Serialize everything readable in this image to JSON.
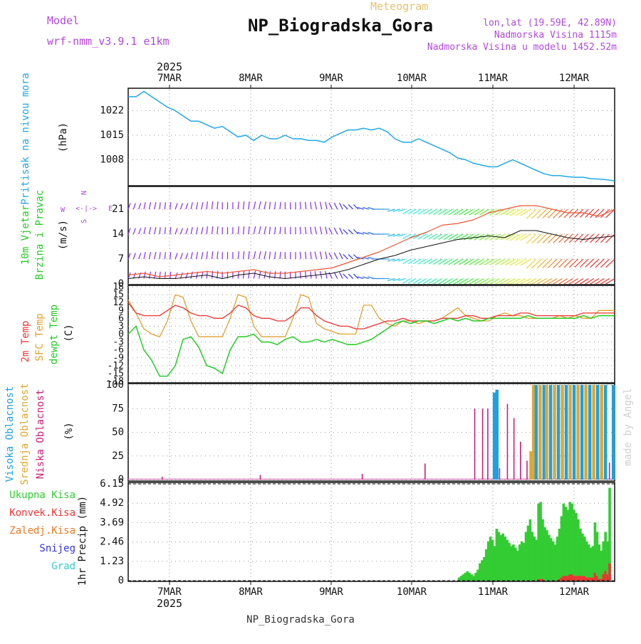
{
  "header": {
    "model_label": "Model",
    "model_name": "wrf-nmm_v3.9.1 e1km",
    "meteogram_label": "Meteogram",
    "station_title": "NP_Biogradska_Gora",
    "coords": "lon,lat (19.59E, 42.89N)",
    "elevation": "Nadmorska Visina 1115m",
    "model_elevation": "Nadmorska Visina u modelu 1452.52m",
    "year_top": "2025",
    "year_bottom": "2025",
    "footer_station": "NP_Biogradska_Gora",
    "credit": "made by Angel"
  },
  "colors": {
    "pressure": "#1fa8e8",
    "temp2m": "#ee3333",
    "sfc_temp": "#e0a030",
    "dewpt": "#22cc22",
    "high_cloud": "#1fa0e0",
    "mid_cloud": "#e0a830",
    "low_cloud": "#cc1f77",
    "total_precip": "#33cc33",
    "conv_precip": "#ee3333",
    "frozen": "#ee7722",
    "snow": "#3333dd",
    "hail": "#33cccc",
    "purple_text": "#b347e0",
    "meteogram_text": "#e8c070"
  },
  "chart_data": [
    {
      "type": "line",
      "id": "pressure",
      "ylabel_1": "Pritisak na nivou mora",
      "ylabel_2": "(hPa)",
      "x_categories": [
        "7MAR",
        "8MAR",
        "9MAR",
        "10MAR",
        "11MAR",
        "12MAR"
      ],
      "yticks": [
        "1022",
        "1015",
        "1008"
      ],
      "ylim": [
        1001,
        1028
      ],
      "x_hours": [
        0,
        6,
        12,
        18,
        24,
        30,
        36,
        42,
        48,
        54,
        60,
        66,
        72,
        78,
        84,
        90,
        96,
        102,
        108,
        114,
        120,
        126,
        132,
        138,
        144,
        150,
        156,
        162,
        168,
        174,
        180,
        186,
        192,
        198,
        204,
        210,
        216,
        222,
        228,
        234,
        240,
        246,
        252,
        258,
        264,
        270,
        276,
        282,
        288,
        294,
        300,
        306,
        312,
        318,
        324,
        330,
        336,
        342,
        348,
        354,
        360,
        366,
        372
      ],
      "values": [
        1026,
        1026,
        1027.5,
        1026,
        1024.5,
        1023,
        1022,
        1020.5,
        1019,
        1019,
        1018,
        1017,
        1017.5,
        1016,
        1014.5,
        1015,
        1013.5,
        1015,
        1014,
        1014,
        1015,
        1014,
        1014,
        1013.5,
        1013.5,
        1013,
        1014.5,
        1015.5,
        1016.5,
        1016.5,
        1017,
        1016.5,
        1017,
        1016,
        1014,
        1013,
        1013,
        1014,
        1013,
        1012,
        1011,
        1010,
        1008.5,
        1008,
        1007,
        1006.5,
        1006,
        1006,
        1007,
        1008,
        1007,
        1006,
        1005,
        1004,
        1003.5,
        1003.5,
        1003.2,
        1003,
        1003,
        1002.6,
        1002.5,
        1002.3,
        1002
      ]
    },
    {
      "type": "line",
      "id": "wind",
      "ylabel_1": "10m Vjetar",
      "ylabel_2": "Brzina i Pravac",
      "unit": "(m/s)",
      "compass_rose": [
        "N",
        "S",
        "E",
        "W",
        "<-|->"
      ],
      "yticks": [
        "21",
        "14",
        "7",
        "0"
      ],
      "ylim": [
        0,
        27
      ],
      "x_hours": [
        0,
        12,
        24,
        36,
        48,
        60,
        72,
        84,
        96,
        108,
        120,
        132,
        144,
        156,
        168,
        180,
        192,
        204,
        216,
        228,
        240,
        252,
        264,
        276,
        288,
        300,
        312,
        324,
        336,
        348,
        360,
        372
      ],
      "speed": [
        1.5,
        2,
        1.5,
        1.5,
        2,
        2.5,
        1.5,
        2.5,
        3,
        2,
        1.5,
        2,
        2.5,
        3,
        4,
        5.5,
        7,
        8,
        9.5,
        10.5,
        11.5,
        12.5,
        13,
        13.5,
        13,
        15,
        15,
        14,
        13,
        12.5,
        13,
        13.5
      ],
      "gust": [
        2.5,
        3,
        2,
        2.5,
        3,
        3.5,
        3,
        3.5,
        4,
        3,
        3,
        3.5,
        4,
        4.5,
        6,
        7.5,
        9,
        11,
        13,
        14.5,
        16.5,
        17,
        18,
        20,
        21,
        22,
        22,
        21,
        20,
        20,
        19,
        21
      ],
      "direction_deg": [
        60,
        70,
        80,
        60,
        70,
        80,
        90,
        80,
        70,
        80,
        90,
        100,
        110,
        130,
        150,
        170,
        180,
        190,
        200,
        200,
        200,
        200,
        200,
        200,
        200,
        200,
        210,
        210,
        210,
        210,
        210,
        210
      ]
    },
    {
      "type": "line",
      "id": "temperature",
      "legend": [
        "2m Temp",
        "SFC Temp",
        "dewpt Temp"
      ],
      "unit": "(C)",
      "yticks": [
        "18",
        "15",
        "12",
        "9",
        "6",
        "3",
        "0",
        "-3",
        "-6",
        "-9",
        "-12",
        "-15",
        "-18"
      ],
      "ylim": [
        -18,
        18
      ],
      "x_hours": [
        0,
        6,
        12,
        18,
        24,
        30,
        36,
        42,
        48,
        54,
        60,
        66,
        72,
        78,
        84,
        90,
        96,
        102,
        108,
        114,
        120,
        126,
        132,
        138,
        144,
        150,
        156,
        162,
        168,
        174,
        180,
        186,
        192,
        198,
        204,
        210,
        216,
        222,
        228,
        234,
        240,
        246,
        252,
        258,
        264,
        270,
        276,
        282,
        288,
        294,
        300,
        306,
        312,
        318,
        324,
        330,
        336,
        342,
        348,
        354,
        360,
        366,
        372
      ],
      "temp2m": [
        12,
        8,
        7,
        7,
        7,
        9,
        11,
        10,
        8,
        7,
        7,
        6,
        6,
        8,
        11,
        10,
        7,
        6,
        6,
        5,
        5,
        7,
        10,
        10,
        7,
        5,
        4,
        3,
        3,
        2,
        2,
        3,
        4,
        5,
        5,
        6,
        5,
        5,
        5,
        5,
        6,
        6,
        6,
        7,
        7,
        6,
        6,
        7,
        7,
        7,
        8,
        8,
        7,
        7,
        7,
        7,
        7,
        7,
        8,
        8,
        8,
        8,
        8
      ],
      "sfc": [
        13,
        8,
        2,
        0,
        -1,
        5,
        15,
        14,
        5,
        -1,
        -1,
        -1,
        -1,
        6,
        15,
        14,
        3,
        -1,
        -1,
        -1,
        -1,
        6,
        15,
        14,
        4,
        2,
        1,
        0,
        0,
        0,
        11,
        11,
        6,
        4,
        3,
        5,
        5,
        4,
        5,
        5,
        6,
        8,
        10,
        7,
        6,
        5,
        5,
        7,
        8,
        7,
        7,
        6,
        6,
        6,
        6,
        7,
        6,
        7,
        6,
        6,
        9,
        9,
        9
      ],
      "dewpt": [
        0,
        3,
        -6,
        -10,
        -16,
        -16,
        -12,
        -2,
        -1,
        -5,
        -12,
        -13,
        -15,
        -6,
        -1,
        -1,
        0,
        -3,
        -3,
        -4,
        -2,
        -1,
        -3,
        -3,
        -2,
        -3,
        -2,
        -3,
        -4,
        -4,
        -3,
        -2,
        0,
        2,
        4,
        5,
        4,
        5,
        5,
        4,
        5,
        6,
        5,
        6,
        5,
        5,
        6,
        6,
        6,
        6,
        6,
        7,
        6,
        6,
        6,
        6,
        6,
        6,
        7,
        6,
        7,
        7,
        7
      ]
    },
    {
      "type": "bar",
      "id": "clouds",
      "legend": [
        "Visoka Oblacnost",
        "Srednja Oblacnost",
        "Niska Oblacnost"
      ],
      "unit": "(%)",
      "yticks": [
        "100",
        "75",
        "50",
        "25",
        "0"
      ],
      "ylim": [
        0,
        100
      ],
      "bars": [
        {
          "h": 26,
          "layer": "low",
          "v": 3
        },
        {
          "h": 101,
          "layer": "low",
          "v": 5
        },
        {
          "h": 179,
          "layer": "low",
          "v": 6
        },
        {
          "h": 227,
          "layer": "low",
          "v": 17
        },
        {
          "h": 265,
          "layer": "low",
          "v": 75
        },
        {
          "h": 271,
          "layer": "low",
          "v": 75
        },
        {
          "h": 275,
          "layer": "low",
          "v": 75
        },
        {
          "h": 280,
          "layer": "high",
          "v": 92
        },
        {
          "h": 282,
          "layer": "high",
          "v": 95
        },
        {
          "h": 284,
          "layer": "low",
          "v": 12
        },
        {
          "h": 290,
          "layer": "low",
          "v": 80
        },
        {
          "h": 295,
          "layer": "low",
          "v": 65
        },
        {
          "h": 300,
          "layer": "low",
          "v": 40
        },
        {
          "h": 305,
          "layer": "low",
          "v": 20
        },
        {
          "h": 308,
          "layer": "mid",
          "v": 30
        },
        {
          "h": 310,
          "layer": "mid",
          "v": 100
        },
        {
          "h": 312,
          "layer": "high",
          "v": 100
        },
        {
          "h": 315,
          "layer": "mid",
          "v": 100
        },
        {
          "h": 318,
          "layer": "high",
          "v": 100
        },
        {
          "h": 320,
          "layer": "mid",
          "v": 100
        },
        {
          "h": 323,
          "layer": "high",
          "v": 100
        },
        {
          "h": 326,
          "layer": "mid",
          "v": 100
        },
        {
          "h": 329,
          "layer": "high",
          "v": 100
        },
        {
          "h": 332,
          "layer": "mid",
          "v": 100
        },
        {
          "h": 335,
          "layer": "high",
          "v": 100
        },
        {
          "h": 338,
          "layer": "mid",
          "v": 100
        },
        {
          "h": 341,
          "layer": "high",
          "v": 100
        },
        {
          "h": 344,
          "layer": "mid",
          "v": 100
        },
        {
          "h": 347,
          "layer": "high",
          "v": 100
        },
        {
          "h": 350,
          "layer": "mid",
          "v": 100
        },
        {
          "h": 353,
          "layer": "high",
          "v": 100
        },
        {
          "h": 356,
          "layer": "mid",
          "v": 100
        },
        {
          "h": 359,
          "layer": "high",
          "v": 100
        },
        {
          "h": 362,
          "layer": "mid",
          "v": 100
        },
        {
          "h": 365,
          "layer": "high",
          "v": 100
        },
        {
          "h": 368,
          "layer": "low",
          "v": 18
        },
        {
          "h": 371,
          "layer": "high",
          "v": 100
        }
      ]
    },
    {
      "type": "bar",
      "id": "precip",
      "legend": [
        "Ukupna Kisa",
        "Konvek.Kisa",
        "Zaledj.Kisa",
        "Snijeg",
        "Grad"
      ],
      "ylabel": "1hr Precip (mm)",
      "yticks": [
        "6.15",
        "4.92",
        "3.69",
        "2.46",
        "1.23",
        "0"
      ],
      "ylim": [
        0,
        6.15
      ],
      "start_hour": 253,
      "total": [
        0.2,
        0.3,
        0.4,
        0.5,
        0.6,
        0.5,
        0.4,
        0.3,
        0.5,
        0.7,
        1.1,
        1.3,
        1.5,
        2.0,
        2.5,
        2.8,
        2.6,
        2.2,
        3.3,
        3.1,
        2.9,
        3.0,
        2.8,
        2.6,
        2.4,
        2.2,
        2.3,
        2.1,
        1.9,
        2.3,
        2.5,
        2.4,
        3.1,
        3.5,
        3.9,
        3.1,
        2.8,
        2.6,
        4.9,
        5.0,
        3.9,
        3.4,
        3.2,
        2.9,
        2.7,
        2.5,
        2.3,
        2.8,
        3.3,
        4.1,
        4.9,
        4.7,
        4.5,
        5.0,
        4.9,
        4.5,
        4.3,
        3.9,
        3.3,
        3.0,
        2.8,
        2.5,
        2.3,
        2.1,
        2.2,
        3.7,
        3.1,
        2.3,
        1.9,
        2.5,
        3.1,
        2.5,
        5.9
      ],
      "conv": [
        0,
        0,
        0,
        0,
        0,
        0,
        0,
        0,
        0,
        0,
        0,
        0,
        0,
        0,
        0,
        0,
        0,
        0,
        0,
        0,
        0,
        0,
        0,
        0,
        0,
        0,
        0,
        0,
        0,
        0,
        0,
        0,
        0,
        0,
        0,
        0,
        0,
        0,
        0.1,
        0.1,
        0.1,
        0,
        0,
        0,
        0,
        0,
        0,
        0,
        0.1,
        0.2,
        0.3,
        0.3,
        0.3,
        0.4,
        0.4,
        0.3,
        0.3,
        0.3,
        0.3,
        0.3,
        0.3,
        0.2,
        0.2,
        0.2,
        0.2,
        0.5,
        0.3,
        0.1,
        0.1,
        0.4,
        0.6,
        0.4,
        1.1
      ]
    }
  ]
}
